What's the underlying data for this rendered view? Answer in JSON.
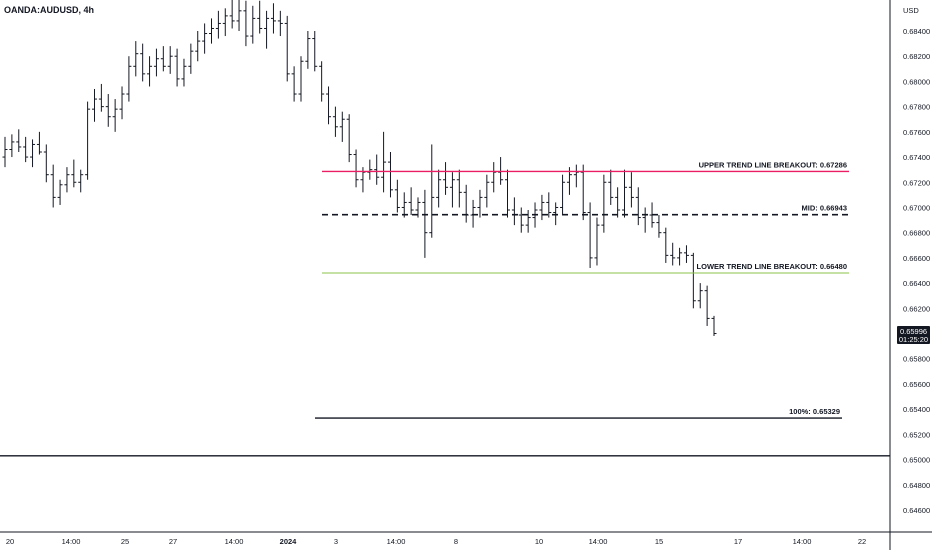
{
  "symbol": "OANDA:AUDUSD, 4h",
  "currency": "USD",
  "last_price": "0.65996",
  "countdown": "01:25:20",
  "chart_data": {
    "type": "ohlc",
    "title": "OANDA:AUDUSD, 4h",
    "ylabel": "USD",
    "ylim": [
      0.6452,
      0.6852
    ],
    "y_ticks": [
      "0.64600",
      "0.64800",
      "0.65000",
      "0.65200",
      "0.65400",
      "0.65600",
      "0.65800",
      "0.66000",
      "0.66200",
      "0.66400",
      "0.66600",
      "0.66800",
      "0.67000",
      "0.67200",
      "0.67400",
      "0.67600",
      "0.67800",
      "0.68000",
      "0.68200",
      "0.68400"
    ],
    "x_ticks": [
      "20",
      "14:00",
      "25",
      "27",
      "14:00",
      "2024",
      "3",
      "14:00",
      "8",
      "10",
      "14:00",
      "15",
      "17",
      "14:00",
      "22"
    ],
    "grid": false,
    "levels": [
      {
        "label": "UPPER TREND LINE BREAKOUT: 0.67286",
        "value": 0.67286,
        "color": "#e91e63",
        "style": "solid"
      },
      {
        "label": "MID: 0.66943",
        "value": 0.66943,
        "color": "#131722",
        "style": "dashed"
      },
      {
        "label": "LOWER TREND LINE BREAKOUT: 0.66480",
        "value": 0.6648,
        "color": "#8bc34a",
        "style": "solid"
      },
      {
        "label": "100%: 0.65329",
        "value": 0.65329,
        "color": "#131722",
        "style": "solid"
      }
    ],
    "support_line": {
      "value": 0.6503,
      "color": "#131722"
    },
    "bars": [
      [
        0.674,
        0.6756,
        0.6732,
        0.6746
      ],
      [
        0.6746,
        0.6758,
        0.674,
        0.6752
      ],
      [
        0.6752,
        0.6762,
        0.6744,
        0.6748
      ],
      [
        0.6748,
        0.6756,
        0.6736,
        0.674
      ],
      [
        0.674,
        0.6754,
        0.6732,
        0.675
      ],
      [
        0.675,
        0.676,
        0.6742,
        0.6744
      ],
      [
        0.6744,
        0.675,
        0.672,
        0.6726
      ],
      [
        0.6726,
        0.6734,
        0.67,
        0.6708
      ],
      [
        0.6708,
        0.6722,
        0.6702,
        0.6718
      ],
      [
        0.6718,
        0.6732,
        0.6712,
        0.6726
      ],
      [
        0.6726,
        0.6738,
        0.6716,
        0.672
      ],
      [
        0.672,
        0.673,
        0.6712,
        0.6726
      ],
      [
        0.6726,
        0.6784,
        0.6722,
        0.6778
      ],
      [
        0.6778,
        0.6794,
        0.6768,
        0.6786
      ],
      [
        0.6786,
        0.6798,
        0.6776,
        0.678
      ],
      [
        0.678,
        0.679,
        0.6764,
        0.6772
      ],
      [
        0.6772,
        0.6786,
        0.676,
        0.6778
      ],
      [
        0.6778,
        0.6796,
        0.677,
        0.679
      ],
      [
        0.679,
        0.682,
        0.6784,
        0.6812
      ],
      [
        0.6812,
        0.6832,
        0.6804,
        0.6822
      ],
      [
        0.6822,
        0.683,
        0.68,
        0.6806
      ],
      [
        0.6806,
        0.682,
        0.6796,
        0.6812
      ],
      [
        0.6812,
        0.6826,
        0.6804,
        0.6818
      ],
      [
        0.6818,
        0.6828,
        0.6808,
        0.6812
      ],
      [
        0.6812,
        0.6828,
        0.6806,
        0.682
      ],
      [
        0.682,
        0.6826,
        0.6796,
        0.6802
      ],
      [
        0.6802,
        0.6818,
        0.6796,
        0.6812
      ],
      [
        0.6812,
        0.683,
        0.6806,
        0.6824
      ],
      [
        0.6824,
        0.684,
        0.6816,
        0.6832
      ],
      [
        0.6832,
        0.6846,
        0.6822,
        0.6838
      ],
      [
        0.6838,
        0.685,
        0.683,
        0.6842
      ],
      [
        0.6842,
        0.6856,
        0.6834,
        0.6846
      ],
      [
        0.6846,
        0.6858,
        0.6836,
        0.6852
      ],
      [
        0.6852,
        0.6866,
        0.6842,
        0.6848
      ],
      [
        0.6848,
        0.6868,
        0.684,
        0.6856
      ],
      [
        0.6856,
        0.6864,
        0.6828,
        0.6836
      ],
      [
        0.6836,
        0.686,
        0.683,
        0.685
      ],
      [
        0.685,
        0.6864,
        0.6838,
        0.6842
      ],
      [
        0.6842,
        0.6856,
        0.6826,
        0.685
      ],
      [
        0.685,
        0.6862,
        0.6838,
        0.6848
      ],
      [
        0.6848,
        0.6856,
        0.6836,
        0.6846
      ],
      [
        0.6846,
        0.6852,
        0.68,
        0.6806
      ],
      [
        0.6806,
        0.6812,
        0.6784,
        0.679
      ],
      [
        0.679,
        0.682,
        0.6784,
        0.6816
      ],
      [
        0.6816,
        0.684,
        0.681,
        0.6834
      ],
      [
        0.6834,
        0.684,
        0.6808,
        0.6812
      ],
      [
        0.6812,
        0.6816,
        0.6784,
        0.679
      ],
      [
        0.679,
        0.6796,
        0.6766,
        0.6772
      ],
      [
        0.6772,
        0.678,
        0.6756,
        0.6764
      ],
      [
        0.6764,
        0.6776,
        0.6752,
        0.677
      ],
      [
        0.677,
        0.6774,
        0.6736,
        0.6742
      ],
      [
        0.6742,
        0.6746,
        0.6716,
        0.6722
      ],
      [
        0.6722,
        0.6732,
        0.6712,
        0.6728
      ],
      [
        0.6728,
        0.6738,
        0.6722,
        0.673
      ],
      [
        0.673,
        0.6742,
        0.6718,
        0.6724
      ],
      [
        0.6724,
        0.676,
        0.6712,
        0.6736
      ],
      [
        0.6736,
        0.6744,
        0.6708,
        0.6714
      ],
      [
        0.6714,
        0.6722,
        0.6696,
        0.67
      ],
      [
        0.67,
        0.6712,
        0.6692,
        0.6704
      ],
      [
        0.6704,
        0.6716,
        0.6694,
        0.6698
      ],
      [
        0.6698,
        0.6708,
        0.6692,
        0.6704
      ],
      [
        0.6704,
        0.6714,
        0.666,
        0.668
      ],
      [
        0.668,
        0.675,
        0.6676,
        0.6708
      ],
      [
        0.6708,
        0.673,
        0.67,
        0.6722
      ],
      [
        0.6722,
        0.6736,
        0.671,
        0.6716
      ],
      [
        0.6716,
        0.6728,
        0.67,
        0.6722
      ],
      [
        0.6722,
        0.673,
        0.67,
        0.6712
      ],
      [
        0.6712,
        0.6718,
        0.6688,
        0.6694
      ],
      [
        0.6694,
        0.6706,
        0.6684,
        0.67
      ],
      [
        0.67,
        0.6714,
        0.6692,
        0.6708
      ],
      [
        0.6708,
        0.6726,
        0.67,
        0.672
      ],
      [
        0.672,
        0.6736,
        0.6712,
        0.6728
      ],
      [
        0.6728,
        0.674,
        0.6718,
        0.6722
      ],
      [
        0.6722,
        0.673,
        0.6692,
        0.6698
      ],
      [
        0.6698,
        0.6708,
        0.6686,
        0.6694
      ],
      [
        0.6694,
        0.67,
        0.668,
        0.6686
      ],
      [
        0.6686,
        0.6698,
        0.668,
        0.6692
      ],
      [
        0.6692,
        0.6704,
        0.6684,
        0.6698
      ],
      [
        0.6698,
        0.671,
        0.669,
        0.6704
      ],
      [
        0.6704,
        0.6712,
        0.6692,
        0.6696
      ],
      [
        0.6696,
        0.6704,
        0.6686,
        0.67
      ],
      [
        0.67,
        0.6726,
        0.6694,
        0.672
      ],
      [
        0.672,
        0.6732,
        0.671,
        0.6726
      ],
      [
        0.6726,
        0.6734,
        0.6716,
        0.6728
      ],
      [
        0.6728,
        0.6734,
        0.669,
        0.6696
      ],
      [
        0.6696,
        0.6704,
        0.6652,
        0.666
      ],
      [
        0.666,
        0.6692,
        0.6654,
        0.6686
      ],
      [
        0.6686,
        0.6726,
        0.668,
        0.672
      ],
      [
        0.672,
        0.673,
        0.6702,
        0.6708
      ],
      [
        0.6708,
        0.6716,
        0.6692,
        0.6698
      ],
      [
        0.6698,
        0.673,
        0.6692,
        0.6716
      ],
      [
        0.6716,
        0.6728,
        0.67,
        0.6708
      ],
      [
        0.6708,
        0.6716,
        0.6686,
        0.6692
      ],
      [
        0.6692,
        0.67,
        0.668,
        0.6694
      ],
      [
        0.6694,
        0.6704,
        0.6684,
        0.6688
      ],
      [
        0.6688,
        0.6694,
        0.6676,
        0.668
      ],
      [
        0.668,
        0.6684,
        0.6656,
        0.6662
      ],
      [
        0.6662,
        0.6672,
        0.6654,
        0.666
      ],
      [
        0.666,
        0.6668,
        0.6654,
        0.6664
      ],
      [
        0.6664,
        0.667,
        0.6656,
        0.6662
      ],
      [
        0.6662,
        0.6664,
        0.662,
        0.6626
      ],
      [
        0.6626,
        0.664,
        0.662,
        0.6634
      ],
      [
        0.6634,
        0.6638,
        0.6606,
        0.6612
      ],
      [
        0.6612,
        0.6614,
        0.6598,
        0.66
      ]
    ]
  }
}
